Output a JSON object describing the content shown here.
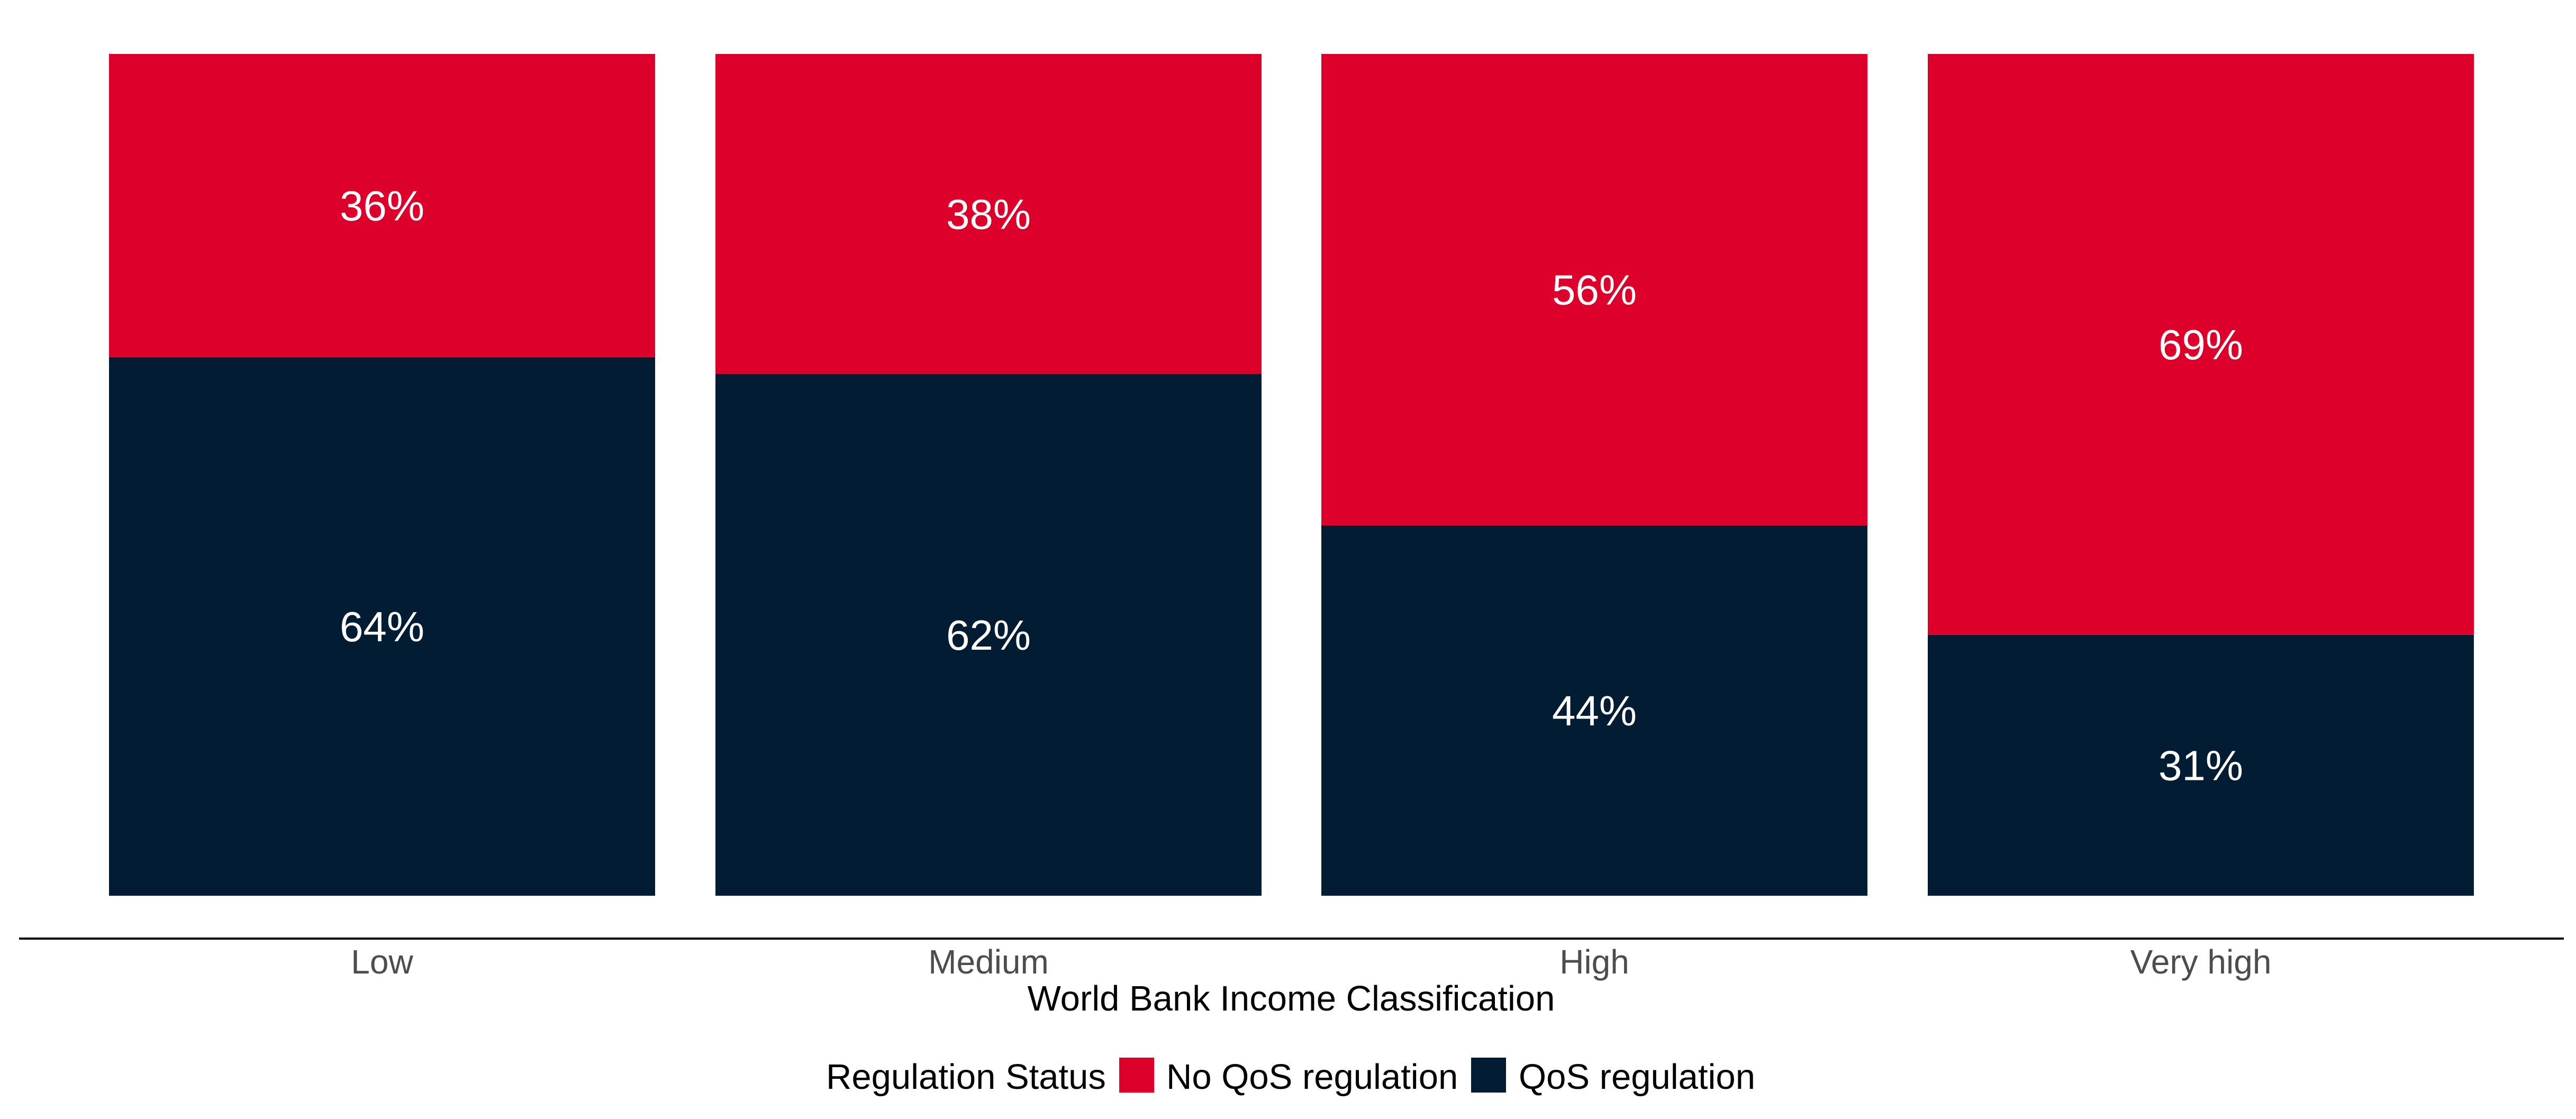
{
  "chart_data": {
    "type": "bar",
    "stacked": true,
    "percent": true,
    "categories": [
      "Low",
      "Medium",
      "High",
      "Very high"
    ],
    "series": [
      {
        "name": "QoS regulation",
        "values": [
          64,
          62,
          44,
          31
        ],
        "labels": [
          "64%",
          "62%",
          "44%",
          "31%"
        ],
        "color": "#021d33"
      },
      {
        "name": "No QoS regulation",
        "values": [
          36,
          38,
          56,
          69
        ],
        "labels": [
          "36%",
          "38%",
          "56%",
          "69%"
        ],
        "color": "#dc002a"
      }
    ],
    "xlabel": "World Bank Income Classification",
    "ylabel": "",
    "ylim": [
      0,
      100
    ],
    "grid": false,
    "legend": {
      "title": "Regulation Status",
      "position": "bottom",
      "entries": [
        {
          "label": "No QoS regulation",
          "color": "#dc002a"
        },
        {
          "label": "QoS regulation",
          "color": "#021d33"
        }
      ]
    }
  }
}
